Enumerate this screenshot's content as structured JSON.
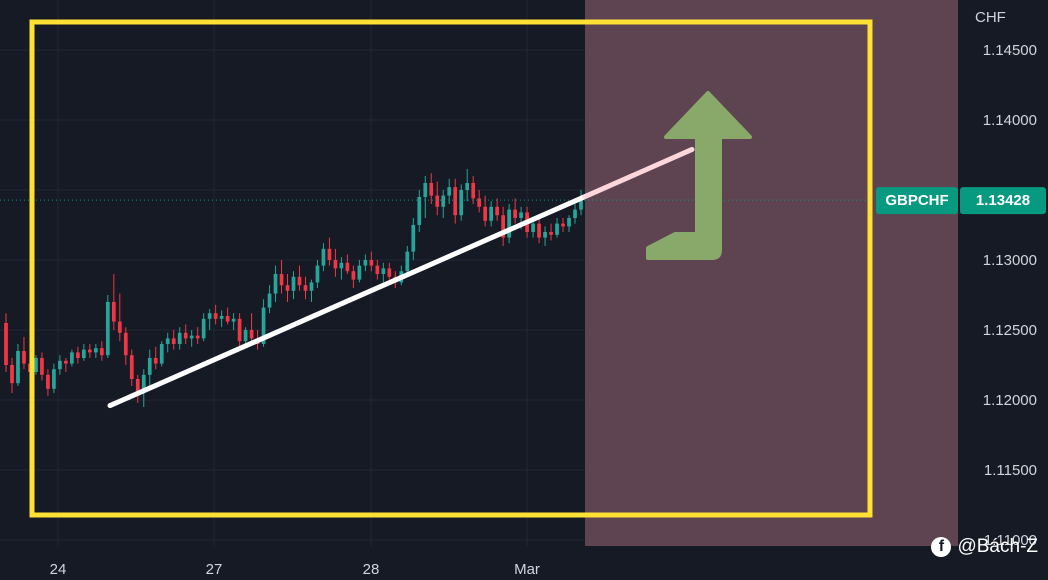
{
  "chart_data": {
    "type": "candlestick",
    "symbol": "GBPCHF",
    "last_price": "1.13428",
    "y_unit": "CHF",
    "y_ticks": [
      "1.14500",
      "1.14000",
      "1.13000",
      "1.12500",
      "1.12000",
      "1.11500",
      "1.11000"
    ],
    "ylim": [
      1.109,
      1.148
    ],
    "x_ticks": [
      "24",
      "27",
      "28",
      "Mar"
    ],
    "candles": [
      [
        1.1255,
        1.1262,
        1.122,
        1.1225
      ],
      [
        1.1225,
        1.123,
        1.1205,
        1.1212
      ],
      [
        1.1212,
        1.124,
        1.121,
        1.1235
      ],
      [
        1.1235,
        1.1245,
        1.1222,
        1.1226
      ],
      [
        1.1226,
        1.1232,
        1.1215,
        1.122
      ],
      [
        1.122,
        1.1232,
        1.1218,
        1.123
      ],
      [
        1.123,
        1.1234,
        1.1214,
        1.1218
      ],
      [
        1.1218,
        1.1222,
        1.1203,
        1.1208
      ],
      [
        1.1208,
        1.1226,
        1.1205,
        1.1222
      ],
      [
        1.1222,
        1.1232,
        1.1218,
        1.1228
      ],
      [
        1.1228,
        1.123,
        1.122,
        1.1226
      ],
      [
        1.1226,
        1.1236,
        1.1224,
        1.1234
      ],
      [
        1.1234,
        1.1238,
        1.1226,
        1.123
      ],
      [
        1.123,
        1.124,
        1.1228,
        1.1236
      ],
      [
        1.1236,
        1.124,
        1.123,
        1.1234
      ],
      [
        1.1234,
        1.124,
        1.123,
        1.1237
      ],
      [
        1.1237,
        1.1242,
        1.1228,
        1.1232
      ],
      [
        1.1232,
        1.1275,
        1.123,
        1.127
      ],
      [
        1.127,
        1.129,
        1.125,
        1.1256
      ],
      [
        1.1256,
        1.1276,
        1.1242,
        1.1248
      ],
      [
        1.1248,
        1.1252,
        1.1225,
        1.1232
      ],
      [
        1.1232,
        1.1236,
        1.121,
        1.1215
      ],
      [
        1.1215,
        1.1218,
        1.1198,
        1.1205
      ],
      [
        1.1205,
        1.1222,
        1.1195,
        1.1218
      ],
      [
        1.1218,
        1.1236,
        1.121,
        1.123
      ],
      [
        1.123,
        1.1238,
        1.1222,
        1.1226
      ],
      [
        1.1226,
        1.1242,
        1.1224,
        1.124
      ],
      [
        1.124,
        1.1248,
        1.1234,
        1.1244
      ],
      [
        1.1244,
        1.125,
        1.1236,
        1.124
      ],
      [
        1.124,
        1.1252,
        1.1236,
        1.1248
      ],
      [
        1.1248,
        1.1254,
        1.124,
        1.1244
      ],
      [
        1.1244,
        1.125,
        1.1238,
        1.1246
      ],
      [
        1.1246,
        1.1252,
        1.124,
        1.1244
      ],
      [
        1.1244,
        1.1262,
        1.1242,
        1.1258
      ],
      [
        1.1258,
        1.1265,
        1.125,
        1.1262
      ],
      [
        1.1262,
        1.1268,
        1.1254,
        1.1258
      ],
      [
        1.1258,
        1.1264,
        1.1252,
        1.126
      ],
      [
        1.126,
        1.1266,
        1.1254,
        1.1256
      ],
      [
        1.1256,
        1.1262,
        1.125,
        1.1258
      ],
      [
        1.1258,
        1.1262,
        1.1236,
        1.1242
      ],
      [
        1.1242,
        1.1252,
        1.1238,
        1.125
      ],
      [
        1.125,
        1.1262,
        1.124,
        1.1244
      ],
      [
        1.1244,
        1.125,
        1.1236,
        1.124
      ],
      [
        1.124,
        1.1272,
        1.1238,
        1.1266
      ],
      [
        1.1266,
        1.1282,
        1.1262,
        1.1276
      ],
      [
        1.1276,
        1.1296,
        1.127,
        1.129
      ],
      [
        1.129,
        1.13,
        1.1276,
        1.1282
      ],
      [
        1.1282,
        1.129,
        1.127,
        1.1278
      ],
      [
        1.1278,
        1.1292,
        1.1272,
        1.1288
      ],
      [
        1.1288,
        1.1296,
        1.1278,
        1.1282
      ],
      [
        1.1282,
        1.1288,
        1.1272,
        1.1278
      ],
      [
        1.1278,
        1.1286,
        1.127,
        1.1284
      ],
      [
        1.1284,
        1.13,
        1.128,
        1.1296
      ],
      [
        1.1296,
        1.1312,
        1.1292,
        1.1308
      ],
      [
        1.1308,
        1.1316,
        1.1296,
        1.13
      ],
      [
        1.13,
        1.1308,
        1.1288,
        1.1294
      ],
      [
        1.1294,
        1.1302,
        1.1286,
        1.1298
      ],
      [
        1.1298,
        1.1304,
        1.129,
        1.1292
      ],
      [
        1.1292,
        1.1296,
        1.128,
        1.1286
      ],
      [
        1.1286,
        1.13,
        1.1284,
        1.1296
      ],
      [
        1.1296,
        1.1304,
        1.1292,
        1.13
      ],
      [
        1.13,
        1.1306,
        1.1292,
        1.1296
      ],
      [
        1.1296,
        1.13,
        1.1286,
        1.129
      ],
      [
        1.129,
        1.1298,
        1.1284,
        1.1294
      ],
      [
        1.1294,
        1.1298,
        1.1286,
        1.1288
      ],
      [
        1.1288,
        1.1292,
        1.128,
        1.1284
      ],
      [
        1.1284,
        1.1296,
        1.1282,
        1.1292
      ],
      [
        1.1292,
        1.131,
        1.129,
        1.1306
      ],
      [
        1.1306,
        1.133,
        1.13,
        1.1325
      ],
      [
        1.1325,
        1.135,
        1.132,
        1.1345
      ],
      [
        1.1345,
        1.136,
        1.133,
        1.1355
      ],
      [
        1.1355,
        1.1362,
        1.134,
        1.1346
      ],
      [
        1.1346,
        1.1356,
        1.1332,
        1.1338
      ],
      [
        1.1338,
        1.135,
        1.133,
        1.1346
      ],
      [
        1.1346,
        1.1358,
        1.134,
        1.1352
      ],
      [
        1.1352,
        1.1358,
        1.1326,
        1.1332
      ],
      [
        1.1332,
        1.1354,
        1.1328,
        1.135
      ],
      [
        1.135,
        1.1365,
        1.1342,
        1.1355
      ],
      [
        1.1355,
        1.136,
        1.134,
        1.1344
      ],
      [
        1.1344,
        1.135,
        1.1334,
        1.1338
      ],
      [
        1.1338,
        1.1346,
        1.1324,
        1.1328
      ],
      [
        1.1328,
        1.1342,
        1.1324,
        1.1338
      ],
      [
        1.1338,
        1.1344,
        1.1328,
        1.1332
      ],
      [
        1.1332,
        1.1338,
        1.131,
        1.1316
      ],
      [
        1.1316,
        1.134,
        1.1312,
        1.1336
      ],
      [
        1.1336,
        1.1344,
        1.1326,
        1.133
      ],
      [
        1.133,
        1.1338,
        1.1322,
        1.1334
      ],
      [
        1.1334,
        1.1338,
        1.1316,
        1.132
      ],
      [
        1.132,
        1.133,
        1.1316,
        1.1326
      ],
      [
        1.1326,
        1.133,
        1.1312,
        1.1316
      ],
      [
        1.1316,
        1.1324,
        1.131,
        1.132
      ],
      [
        1.132,
        1.1326,
        1.1314,
        1.1318
      ],
      [
        1.1318,
        1.133,
        1.1316,
        1.1326
      ],
      [
        1.1326,
        1.133,
        1.132,
        1.1324
      ],
      [
        1.1324,
        1.1332,
        1.132,
        1.133
      ],
      [
        1.133,
        1.134,
        1.1326,
        1.1336
      ],
      [
        1.1336,
        1.135,
        1.1332,
        1.1343
      ]
    ],
    "trendline": {
      "from": [
        "24",
        1.1196
      ],
      "to": [
        "Mar",
        1.1345
      ]
    },
    "colors": {
      "up": "#26a69a",
      "down": "#f23645",
      "background": "#161a25",
      "grid": "#232733",
      "highlight_box": "#ffe135",
      "future_zone": "#5e4350",
      "trendline": "#ffffff",
      "arrow": "#88a96a",
      "tag": "#089981"
    }
  },
  "watermark": {
    "text": "@Bách-Z",
    "icon": "facebook-icon"
  }
}
